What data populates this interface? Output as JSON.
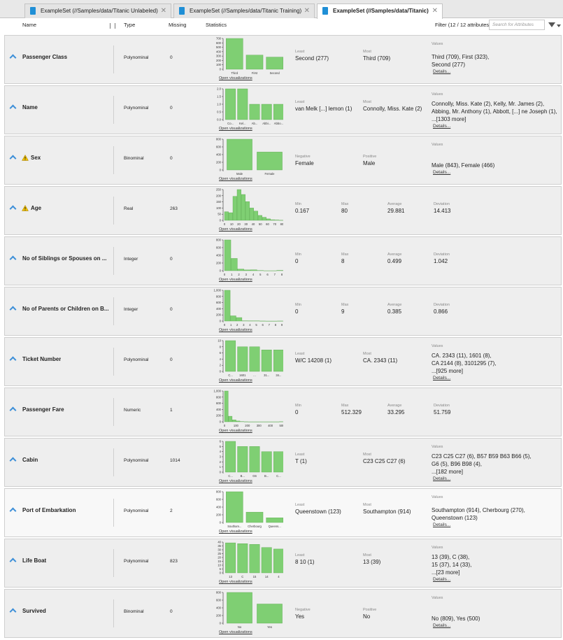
{
  "tabs": [
    {
      "label": "ExampleSet (//Samples/data/Titanic Unlabeled)",
      "active": false
    },
    {
      "label": "ExampleSet (//Samples/data/Titanic Training)",
      "active": false
    },
    {
      "label": "ExampleSet (//Samples/data/Titanic)",
      "active": true
    }
  ],
  "header": {
    "name": "Name",
    "type": "Type",
    "missing": "Missing",
    "statistics": "Statistics",
    "filter": "Filter (12 / 12 attributes):",
    "search_placeholder": "Search for Attributes"
  },
  "open_viz_label": "Open visualizations",
  "details_label": "Details...",
  "values_label": "Values",
  "attributes": [
    {
      "name": "Passenger Class",
      "type": "Polynominal",
      "missing": "0",
      "warning": false,
      "kind": "nominal",
      "stats": [
        {
          "label": "Least",
          "value": "Second (277)"
        },
        {
          "label": "Most",
          "value": "Third (709)"
        }
      ],
      "values": [
        "Third (709), First (323),",
        "Second (277)"
      ],
      "hist": {
        "ylim": [
          0,
          700
        ],
        "yticks": [
          "0",
          "100",
          "200",
          "300",
          "400",
          "500",
          "600",
          "700"
        ],
        "bars": [
          709,
          323,
          277
        ],
        "xlabels": [
          "Third",
          "First",
          "Second"
        ]
      }
    },
    {
      "name": "Name",
      "type": "Polynominal",
      "missing": "0",
      "warning": false,
      "kind": "nominal",
      "stats": [
        {
          "label": "Least",
          "value": "van Melk [...] lemon (1)"
        },
        {
          "label": "Most",
          "value": "Connolly, Miss. Kate (2)"
        }
      ],
      "values": [
        "Connolly, Miss. Kate (2), Kelly, Mr. James (2),",
        "Abbing, Mr. Anthony (1), Abbott, [...] ne Joseph (1),",
        "...[1303 more]"
      ],
      "hist": {
        "ylim": [
          0,
          2
        ],
        "yticks": [
          "0.0",
          "0.5",
          "1.0",
          "1.5",
          "2.0"
        ],
        "bars": [
          2,
          2,
          1,
          1,
          1
        ],
        "xlabels": [
          "Co...",
          "Kel...",
          "Ab...",
          "Abbi...",
          "Abbo..."
        ]
      }
    },
    {
      "name": "Sex",
      "type": "Binominal",
      "missing": "0",
      "warning": true,
      "kind": "binominal",
      "stats": [
        {
          "label": "Negative",
          "value": "Female"
        },
        {
          "label": "Positive",
          "value": "Male"
        }
      ],
      "values": [
        "Male (843), Female (466)"
      ],
      "hist": {
        "ylim": [
          0,
          800
        ],
        "yticks": [
          "0",
          "200",
          "400",
          "600",
          "800"
        ],
        "bars": [
          843,
          466
        ],
        "xlabels": [
          "Male",
          "Female"
        ]
      }
    },
    {
      "name": "Age",
      "type": "Real",
      "missing": "263",
      "warning": true,
      "kind": "numeric",
      "stats": [
        {
          "label": "Min",
          "value": "0.167"
        },
        {
          "label": "Max",
          "value": "80"
        },
        {
          "label": "Average",
          "value": "29.881"
        },
        {
          "label": "Deviation",
          "value": "14.413"
        }
      ],
      "hist": {
        "ylim": [
          0,
          250
        ],
        "yticks": [
          "0",
          "50",
          "100",
          "150",
          "200",
          "250"
        ],
        "bars": [
          70,
          62,
          195,
          250,
          210,
          152,
          100,
          75,
          40,
          25,
          12,
          5,
          3,
          1
        ],
        "xlabels": [
          "0",
          "10",
          "20",
          "30",
          "40",
          "50",
          "60",
          "70",
          "80"
        ],
        "continuous": true
      }
    },
    {
      "name": "No of Siblings or Spouses on ...",
      "type": "Integer",
      "missing": "0",
      "warning": false,
      "kind": "numeric",
      "stats": [
        {
          "label": "Min",
          "value": "0"
        },
        {
          "label": "Max",
          "value": "8"
        },
        {
          "label": "Average",
          "value": "0.499"
        },
        {
          "label": "Deviation",
          "value": "1.042"
        }
      ],
      "hist": {
        "ylim": [
          0,
          800
        ],
        "yticks": [
          "0",
          "200",
          "400",
          "600",
          "800"
        ],
        "bars": [
          891,
          319,
          42,
          20,
          22,
          6,
          0,
          0,
          9
        ],
        "xlabels": [
          "0",
          "1",
          "2",
          "3",
          "4",
          "5",
          "6",
          "7",
          "8"
        ],
        "continuous": true
      }
    },
    {
      "name": "No of Parents or Children on B...",
      "type": "Integer",
      "missing": "0",
      "warning": false,
      "kind": "numeric",
      "stats": [
        {
          "label": "Min",
          "value": "0"
        },
        {
          "label": "Max",
          "value": "9"
        },
        {
          "label": "Average",
          "value": "0.385"
        },
        {
          "label": "Deviation",
          "value": "0.866"
        }
      ],
      "hist": {
        "ylim": [
          0,
          1000
        ],
        "yticks": [
          "0",
          "200",
          "400",
          "600",
          "800",
          "1,000"
        ],
        "bars": [
          1002,
          170,
          113,
          8,
          6,
          6,
          2,
          0,
          0,
          2
        ],
        "xlabels": [
          "0",
          "1",
          "2",
          "3",
          "4",
          "5",
          "6",
          "7",
          "8",
          "9"
        ],
        "continuous": true
      }
    },
    {
      "name": "Ticket Number",
      "type": "Polynominal",
      "missing": "0",
      "warning": false,
      "kind": "nominal",
      "stats": [
        {
          "label": "Least",
          "value": "W/C 14208 (1)"
        },
        {
          "label": "Most",
          "value": "CA. 2343 (11)"
        }
      ],
      "values": [
        "CA. 2343 (11), 1601 (8),",
        "CA 2144 (8), 3101295 (7),",
        "...[925 more]"
      ],
      "hist": {
        "ylim": [
          0,
          10
        ],
        "yticks": [
          "0",
          "2",
          "4",
          "6",
          "8",
          "10"
        ],
        "bars": [
          11,
          8,
          8,
          7,
          7
        ],
        "xlabels": [
          "C...",
          "1601",
          "...",
          "31...",
          "34..."
        ]
      }
    },
    {
      "name": "Passenger Fare",
      "type": "Numeric",
      "missing": "1",
      "warning": false,
      "kind": "numeric",
      "stats": [
        {
          "label": "Min",
          "value": "0"
        },
        {
          "label": "Max",
          "value": "512.329"
        },
        {
          "label": "Average",
          "value": "33.295"
        },
        {
          "label": "Deviation",
          "value": "51.759"
        }
      ],
      "hist": {
        "ylim": [
          0,
          1000
        ],
        "yticks": [
          "0",
          "200",
          "400",
          "600",
          "800",
          "1,000"
        ],
        "bars": [
          1000,
          180,
          60,
          25,
          8,
          2,
          0,
          0,
          0,
          0,
          0,
          0,
          0,
          0,
          4
        ],
        "xlabels": [
          "0",
          "100",
          "200",
          "300",
          "400",
          "500"
        ],
        "continuous": true
      }
    },
    {
      "name": "Cabin",
      "type": "Polynominal",
      "missing": "1014",
      "warning": false,
      "kind": "nominal",
      "stats": [
        {
          "label": "Least",
          "value": "T (1)"
        },
        {
          "label": "Most",
          "value": "C23 C25 C27 (6)"
        }
      ],
      "values": [
        "C23 C25 C27 (6), B57 B59 B63 B66 (5),",
        "G6 (5), B96 B98 (4),",
        "...[182 more]"
      ],
      "hist": {
        "ylim": [
          0,
          6
        ],
        "yticks": [
          "0",
          "1",
          "2",
          "3",
          "4",
          "5",
          "6"
        ],
        "bars": [
          6,
          5,
          5,
          4,
          4
        ],
        "xlabels": [
          "C...",
          "B...",
          "G6",
          "B...",
          "C..."
        ]
      }
    },
    {
      "name": "Port of Embarkation",
      "type": "Polynominal",
      "missing": "2",
      "warning": false,
      "kind": "nominal",
      "light": true,
      "stats": [
        {
          "label": "Least",
          "value": "Queenstown (123)"
        },
        {
          "label": "Most",
          "value": "Southampton (914)"
        }
      ],
      "values": [
        "Southampton (914), Cherbourg (270),",
        "Queenstown (123)"
      ],
      "hist": {
        "ylim": [
          0,
          800
        ],
        "yticks": [
          "0",
          "200",
          "400",
          "600",
          "800"
        ],
        "bars": [
          914,
          270,
          123
        ],
        "xlabels": [
          "Southam...",
          "Cherbourg",
          "Queens..."
        ]
      }
    },
    {
      "name": "Life Boat",
      "type": "Polynominal",
      "missing": "823",
      "warning": false,
      "kind": "nominal",
      "stats": [
        {
          "label": "Least",
          "value": "8 10 (1)"
        },
        {
          "label": "Most",
          "value": "13 (39)"
        }
      ],
      "values": [
        "13 (39), C (38),",
        "15 (37), 14 (33),",
        "...[23 more]"
      ],
      "hist": {
        "ylim": [
          0,
          40
        ],
        "yticks": [
          "0",
          "5",
          "10",
          "15",
          "20",
          "25",
          "30",
          "35",
          "40"
        ],
        "bars": [
          39,
          38,
          37,
          33,
          31
        ],
        "xlabels": [
          "13",
          "C",
          "15",
          "14",
          "4"
        ]
      }
    },
    {
      "name": "Survived",
      "type": "Binominal",
      "missing": "0",
      "warning": false,
      "kind": "binominal",
      "stats": [
        {
          "label": "Negative",
          "value": "Yes"
        },
        {
          "label": "Positive",
          "value": "No"
        }
      ],
      "values": [
        "No (809), Yes (500)"
      ],
      "hist": {
        "ylim": [
          0,
          800
        ],
        "yticks": [
          "0",
          "200",
          "400",
          "600",
          "800"
        ],
        "bars": [
          809,
          500
        ],
        "xlabels": [
          "No",
          "Yes"
        ]
      }
    }
  ],
  "colors": {
    "bar_fill": "#7fcf73",
    "bar_stroke": "#5aa84e",
    "caret": "#3d8fd8",
    "warning": "#f2c200",
    "tab_icon": "#1f8fd6"
  }
}
